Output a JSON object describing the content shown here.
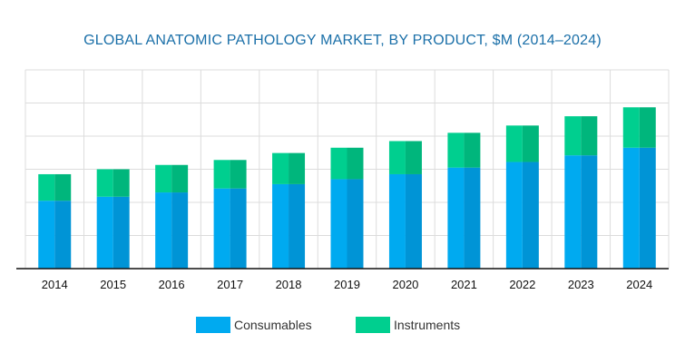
{
  "chart_data": {
    "type": "bar",
    "stacked": true,
    "title": "GLOBAL ANATOMIC PATHOLOGY MARKET, BY PRODUCT, $M (2014–2024)",
    "xlabel": "",
    "ylabel": "",
    "categories": [
      "2014",
      "2015",
      "2016",
      "2017",
      "2018",
      "2019",
      "2020",
      "2021",
      "2022",
      "2023",
      "2024"
    ],
    "series": [
      {
        "name": "Consumables",
        "color": "#00aaf0",
        "shade": "#0094d6",
        "values": [
          2.05,
          2.17,
          2.3,
          2.42,
          2.55,
          2.7,
          2.85,
          3.05,
          3.22,
          3.42,
          3.65
        ]
      },
      {
        "name": "Instruments",
        "color": "#00cf8f",
        "shade": "#00b67c",
        "values": [
          0.8,
          0.83,
          0.83,
          0.86,
          0.94,
          0.95,
          1.0,
          1.05,
          1.1,
          1.18,
          1.22
        ]
      }
    ],
    "ylim": [
      0,
      6
    ],
    "grid": true,
    "legend_position": "bottom"
  }
}
